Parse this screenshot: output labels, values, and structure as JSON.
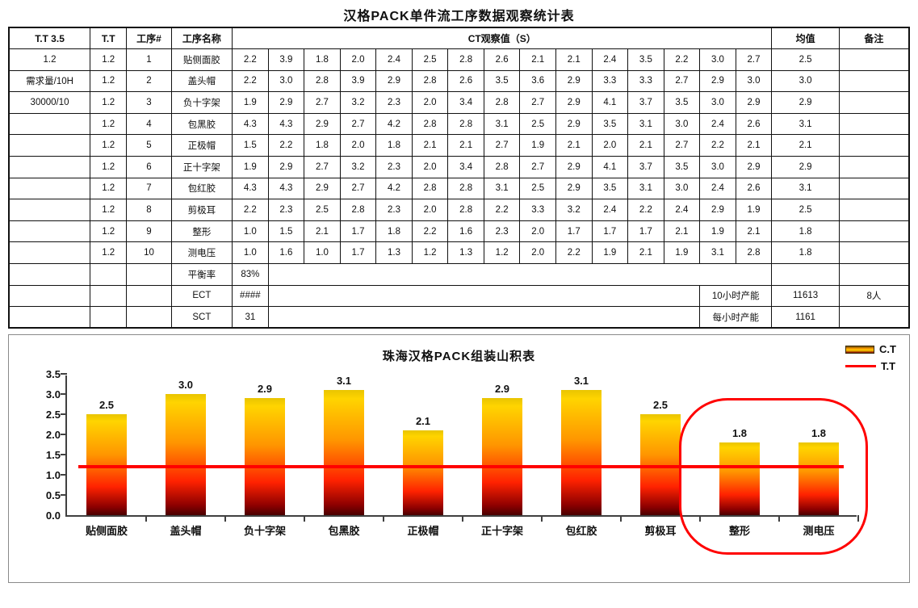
{
  "title": "汉格PACK单件流工序数据观察统计表",
  "table": {
    "headers": [
      "T.T 3.5",
      "T.T",
      "工序#",
      "工序名称",
      "CT观察值（S）",
      "均值",
      "备注"
    ],
    "rows": [
      {
        "info": "1.2",
        "tt": "1.2",
        "no": "1",
        "name": "贴侧面胶",
        "ct": [
          "2.2",
          "3.9",
          "1.8",
          "2.0",
          "2.4",
          "2.5",
          "2.8",
          "2.6",
          "2.1",
          "2.1",
          "2.4",
          "3.5",
          "2.2",
          "3.0",
          "2.7"
        ],
        "mean": "2.5",
        "remark": ""
      },
      {
        "info": "需求量/10H",
        "tt": "1.2",
        "no": "2",
        "name": "盖头帽",
        "ct": [
          "2.2",
          "3.0",
          "2.8",
          "3.9",
          "2.9",
          "2.8",
          "2.6",
          "3.5",
          "3.6",
          "2.9",
          "3.3",
          "3.3",
          "2.7",
          "2.9",
          "3.0"
        ],
        "mean": "3.0",
        "remark": ""
      },
      {
        "info": "30000/10",
        "tt": "1.2",
        "no": "3",
        "name": "负十字架",
        "ct": [
          "1.9",
          "2.9",
          "2.7",
          "3.2",
          "2.3",
          "2.0",
          "3.4",
          "2.8",
          "2.7",
          "2.9",
          "4.1",
          "3.7",
          "3.5",
          "3.0",
          "2.9"
        ],
        "mean": "2.9",
        "remark": ""
      },
      {
        "info": "",
        "tt": "1.2",
        "no": "4",
        "name": "包黑胶",
        "ct": [
          "4.3",
          "4.3",
          "2.9",
          "2.7",
          "4.2",
          "2.8",
          "2.8",
          "3.1",
          "2.5",
          "2.9",
          "3.5",
          "3.1",
          "3.0",
          "2.4",
          "2.6"
        ],
        "mean": "3.1",
        "remark": ""
      },
      {
        "info": "",
        "tt": "1.2",
        "no": "5",
        "name": "正极帽",
        "ct": [
          "1.5",
          "2.2",
          "1.8",
          "2.0",
          "1.8",
          "2.1",
          "2.1",
          "2.7",
          "1.9",
          "2.1",
          "2.0",
          "2.1",
          "2.7",
          "2.2",
          "2.1"
        ],
        "mean": "2.1",
        "remark": ""
      },
      {
        "info": "",
        "tt": "1.2",
        "no": "6",
        "name": "正十字架",
        "ct": [
          "1.9",
          "2.9",
          "2.7",
          "3.2",
          "2.3",
          "2.0",
          "3.4",
          "2.8",
          "2.7",
          "2.9",
          "4.1",
          "3.7",
          "3.5",
          "3.0",
          "2.9"
        ],
        "mean": "2.9",
        "remark": ""
      },
      {
        "info": "",
        "tt": "1.2",
        "no": "7",
        "name": "包红胶",
        "ct": [
          "4.3",
          "4.3",
          "2.9",
          "2.7",
          "4.2",
          "2.8",
          "2.8",
          "3.1",
          "2.5",
          "2.9",
          "3.5",
          "3.1",
          "3.0",
          "2.4",
          "2.6"
        ],
        "mean": "3.1",
        "remark": ""
      },
      {
        "info": "",
        "tt": "1.2",
        "no": "8",
        "name": "剪极耳",
        "ct": [
          "2.2",
          "2.3",
          "2.5",
          "2.8",
          "2.3",
          "2.0",
          "2.8",
          "2.2",
          "3.3",
          "3.2",
          "2.4",
          "2.2",
          "2.4",
          "2.9",
          "1.9"
        ],
        "mean": "2.5",
        "remark": ""
      },
      {
        "info": "",
        "tt": "1.2",
        "no": "9",
        "name": "整形",
        "ct": [
          "1.0",
          "1.5",
          "2.1",
          "1.7",
          "1.8",
          "2.2",
          "1.6",
          "2.3",
          "2.0",
          "1.7",
          "1.7",
          "1.7",
          "2.1",
          "1.9",
          "2.1"
        ],
        "mean": "1.8",
        "remark": ""
      },
      {
        "info": "",
        "tt": "1.2",
        "no": "10",
        "name": "测电压",
        "ct": [
          "1.0",
          "1.6",
          "1.0",
          "1.7",
          "1.3",
          "1.2",
          "1.3",
          "1.2",
          "2.0",
          "2.2",
          "1.9",
          "2.1",
          "1.9",
          "3.1",
          "2.8"
        ],
        "mean": "1.8",
        "remark": ""
      }
    ],
    "summary_rows": [
      {
        "label": "平衡率",
        "value": "83%",
        "right_label": "",
        "mean": "",
        "remark": ""
      },
      {
        "label": "ECT",
        "value": "####",
        "right_label": "10小时产能",
        "mean": "11613",
        "remark": "8人"
      },
      {
        "label": "SCT",
        "value": "31",
        "right_label": "每小时产能",
        "mean": "1161",
        "remark": ""
      }
    ]
  },
  "chart_data": {
    "type": "bar",
    "title": "珠海汉格PACK组装山积表",
    "categories": [
      "贴侧面胶",
      "盖头帽",
      "负十字架",
      "包黑胶",
      "正极帽",
      "正十字架",
      "包红胶",
      "剪极耳",
      "整形",
      "测电压"
    ],
    "series": [
      {
        "name": "C.T",
        "type": "bar",
        "values": [
          2.5,
          3.0,
          2.9,
          3.1,
          2.1,
          2.9,
          3.1,
          2.5,
          1.8,
          1.8
        ]
      },
      {
        "name": "T.T",
        "type": "line",
        "values": [
          1.2,
          1.2,
          1.2,
          1.2,
          1.2,
          1.2,
          1.2,
          1.2,
          1.2,
          1.2
        ]
      }
    ],
    "ylim": [
      0,
      3.5
    ],
    "yticks": [
      "0.0",
      "0.5",
      "1.0",
      "1.5",
      "2.0",
      "2.5",
      "3.0",
      "3.5"
    ],
    "grid": false,
    "legend_position": "top-right",
    "annotation": {
      "shape": "red-oval",
      "around": [
        "整形",
        "测电压"
      ]
    },
    "colors": {
      "bar_top": "#ffd400",
      "bar_mid": "#ff9600",
      "bar_low": "#ff2200",
      "bar_bottom": "#4a0000",
      "tt_line": "#ff0000",
      "oval": "#ff0000"
    }
  }
}
